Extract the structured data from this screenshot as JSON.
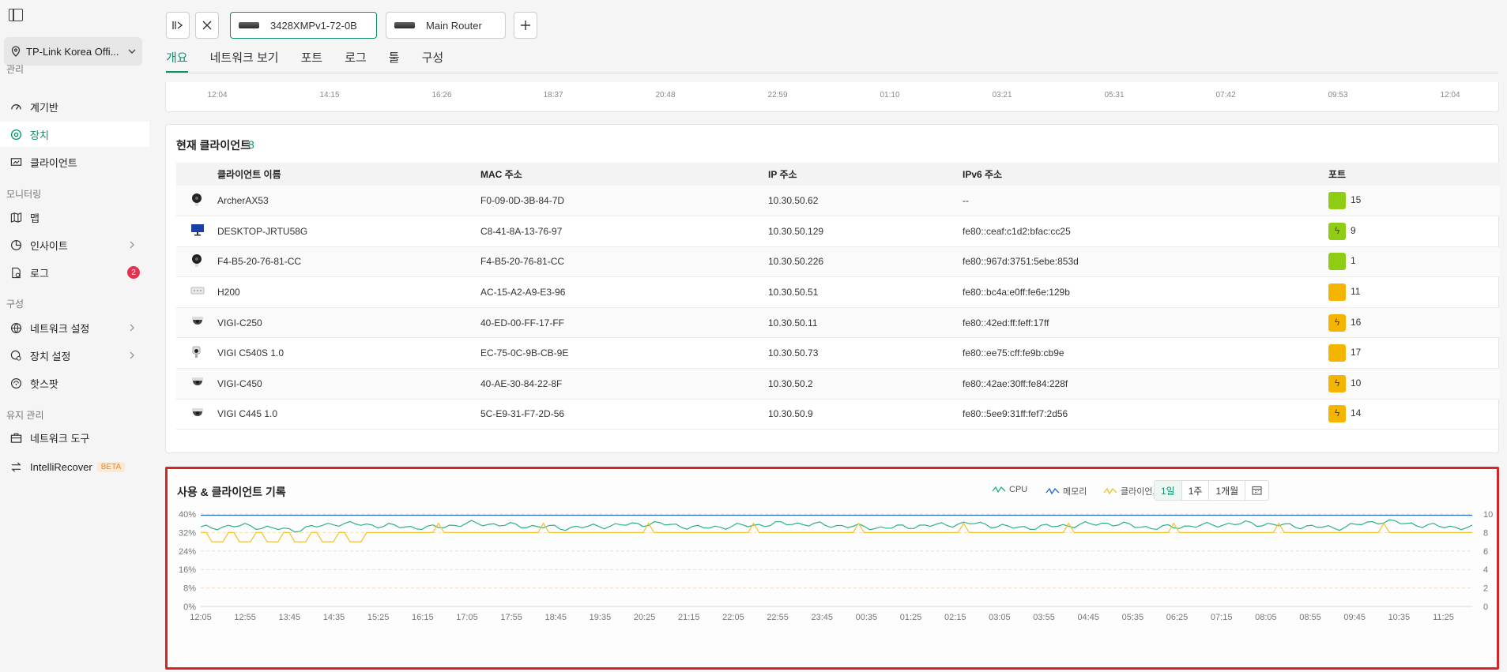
{
  "sidebar": {
    "site": "TP-Link Korea Offi...",
    "sections": {
      "manage": "관리",
      "monitoring": "모니터링",
      "config": "구성",
      "maintenance": "유지 관리"
    },
    "items": {
      "dashboard": "계기반",
      "devices": "장치",
      "clients": "클라이언트",
      "map": "맵",
      "insights": "인사이트",
      "logs": "로그",
      "logs_badge": "2",
      "network_settings": "네트워크 설정",
      "device_settings": "장치 설정",
      "hotspot": "핫스팟",
      "network_tools": "네트워크 도구",
      "intellirecover": "IntelliRecover",
      "beta": "BETA"
    }
  },
  "device_tabs": [
    "3428XMPv1-72-0B",
    "Main Router"
  ],
  "tabs": [
    "개요",
    "네트워크 보기",
    "포트",
    "로그",
    "툴",
    "구성"
  ],
  "top_time_axis": [
    "12:04",
    "14:15",
    "16:26",
    "18:37",
    "20:48",
    "22:59",
    "01:10",
    "03:21",
    "05:31",
    "07:42",
    "09:53",
    "12:04"
  ],
  "clients": {
    "title": "현재 클라이언트",
    "count": "8",
    "headers": [
      "클라이언트 이름",
      "MAC 주소",
      "IP 주소",
      "IPv6 주소",
      "포트"
    ],
    "rows": [
      {
        "icon": "camera-icon",
        "name": "ArcherAX53",
        "mac": "F0-09-0D-3B-84-7D",
        "ip": "10.30.50.62",
        "ipv6": "--",
        "port": "15",
        "port_color": "#8fcc14",
        "poe": false
      },
      {
        "icon": "monitor-icon",
        "name": "DESKTOP-JRTU58G",
        "mac": "C8-41-8A-13-76-97",
        "ip": "10.30.50.129",
        "ipv6": "fe80::ceaf:c1d2:bfac:cc25",
        "port": "9",
        "port_color": "#8fcc14",
        "poe": true
      },
      {
        "icon": "camera-icon",
        "name": "F4-B5-20-76-81-CC",
        "mac": "F4-B5-20-76-81-CC",
        "ip": "10.30.50.226",
        "ipv6": "fe80::967d:3751:5ebe:853d",
        "port": "1",
        "port_color": "#8fcc14",
        "poe": false
      },
      {
        "icon": "router-icon",
        "name": "H200",
        "mac": "AC-15-A2-A9-E3-96",
        "ip": "10.30.50.51",
        "ipv6": "fe80::bc4a:e0ff:fe6e:129b",
        "port": "11",
        "port_color": "#f5b400",
        "poe": false
      },
      {
        "icon": "dome-camera-icon",
        "name": "VIGI-C250",
        "mac": "40-ED-00-FF-17-FF",
        "ip": "10.30.50.11",
        "ipv6": "fe80::42ed:ff:feff:17ff",
        "port": "16",
        "port_color": "#f5b400",
        "poe": true
      },
      {
        "icon": "bullet-camera-icon",
        "name": "VIGI C540S 1.0",
        "mac": "EC-75-0C-9B-CB-9E",
        "ip": "10.30.50.73",
        "ipv6": "fe80::ee75:cff:fe9b:cb9e",
        "port": "17",
        "port_color": "#f5b400",
        "poe": false
      },
      {
        "icon": "dome-camera-icon",
        "name": "VIGI-C450",
        "mac": "40-AE-30-84-22-8F",
        "ip": "10.30.50.2",
        "ipv6": "fe80::42ae:30ff:fe84:228f",
        "port": "10",
        "port_color": "#f5b400",
        "poe": true
      },
      {
        "icon": "dome-camera-icon",
        "name": "VIGI C445 1.0",
        "mac": "5C-E9-31-F7-2D-56",
        "ip": "10.30.50.9",
        "ipv6": "fe80::5ee9:31ff:fef7:2d56",
        "port": "14",
        "port_color": "#f5b400",
        "poe": true
      }
    ]
  },
  "history": {
    "title": "사용 & 클라이언트 기록",
    "legend": {
      "cpu": "CPU",
      "memory": "메모리",
      "clients": "클라이언트"
    },
    "ranges": [
      "1일",
      "1주",
      "1개월"
    ],
    "active_range": "1일",
    "colors": {
      "cpu": "#2bb383",
      "memory": "#2f6fc4",
      "clients": "#f2c230"
    }
  },
  "chart_data": {
    "type": "line",
    "title": "사용 & 클라이언트 기록",
    "x_ticks": [
      "12:05",
      "12:55",
      "13:45",
      "14:35",
      "15:25",
      "16:15",
      "17:05",
      "17:55",
      "18:45",
      "19:35",
      "20:25",
      "21:15",
      "22:05",
      "22:55",
      "23:45",
      "00:35",
      "01:25",
      "02:15",
      "03:05",
      "03:55",
      "04:45",
      "05:35",
      "06:25",
      "07:15",
      "08:05",
      "08:55",
      "09:45",
      "10:35",
      "11:25"
    ],
    "y_left_ticks": [
      "0%",
      "8%",
      "16%",
      "24%",
      "32%",
      "40%"
    ],
    "y_left_range": [
      0,
      40
    ],
    "y_right_ticks": [
      "0",
      "2",
      "4",
      "6",
      "8",
      "10"
    ],
    "y_right_range": [
      0,
      10
    ],
    "grid": true,
    "series": [
      {
        "name": "CPU",
        "axis": "left",
        "approx_values": [
          34,
          35,
          33,
          36,
          35,
          34,
          36,
          35,
          34,
          35,
          36,
          34,
          35,
          36,
          35,
          34,
          35,
          36,
          34,
          35,
          36,
          34,
          35,
          36,
          35,
          34,
          37,
          35,
          34
        ]
      },
      {
        "name": "메모리",
        "axis": "left",
        "approx_values": [
          39.5,
          39.5,
          39.5,
          39.5,
          39.5,
          39.5,
          39.5,
          39.5,
          39.5,
          39.5,
          39.5,
          39.5,
          39.5,
          39.5,
          39.5,
          39.5,
          39.5,
          39.5,
          39.5,
          39.5,
          39.5,
          39.5,
          39.5,
          39.5,
          39.5,
          39.5,
          39.5,
          39.5,
          39.5
        ]
      },
      {
        "name": "클라이언트",
        "axis": "right",
        "approx_values": [
          7,
          7,
          7,
          8,
          8,
          8,
          8,
          8,
          8,
          8,
          8,
          8,
          8,
          8,
          8,
          8,
          8,
          8,
          8,
          8,
          8,
          8,
          8,
          8,
          8,
          8,
          8,
          8,
          8
        ]
      }
    ]
  }
}
